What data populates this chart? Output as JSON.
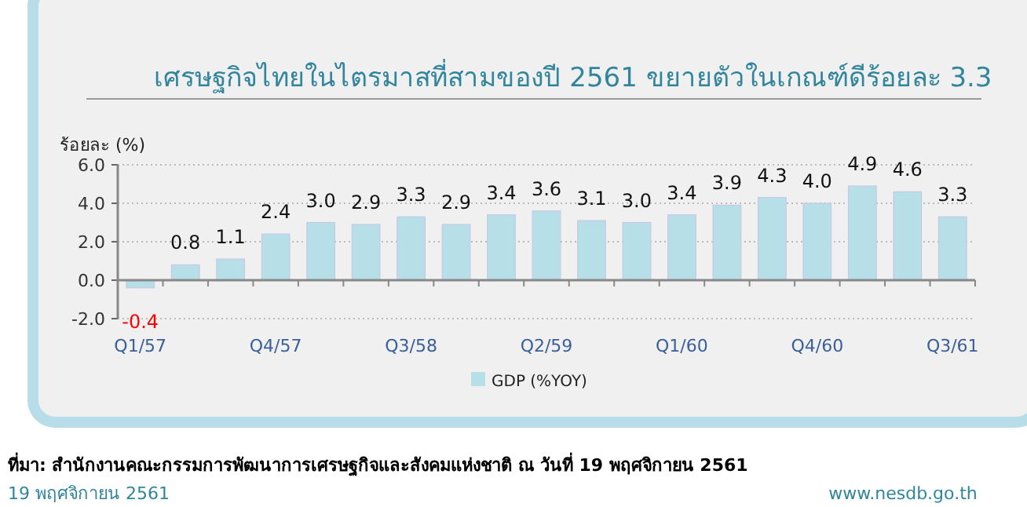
{
  "chart_data": {
    "type": "bar",
    "title": "เศรษฐกิจไทยในไตรมาสที่สามของปี 2561 ขยายตัวในเกณฑ์ดีร้อยละ 3.3",
    "ylabel": "ร้อยละ (%)",
    "categories": [
      "Q1/57",
      null,
      null,
      "Q4/57",
      null,
      null,
      "Q3/58",
      null,
      null,
      "Q2/59",
      null,
      null,
      "Q1/60",
      null,
      null,
      "Q4/60",
      null,
      null,
      "Q3/61"
    ],
    "series": [
      {
        "name": "GDP (%YOY)",
        "color": "#b7dfe8",
        "values": [
          -0.4,
          0.8,
          1.1,
          2.4,
          3.0,
          2.9,
          3.3,
          2.9,
          3.4,
          3.6,
          3.1,
          3.0,
          3.4,
          3.9,
          4.3,
          4.0,
          4.9,
          4.6,
          3.3
        ],
        "value_labels": [
          "-0.4",
          "0.8",
          "1.1",
          "2.4",
          "3.0",
          "2.9",
          "3.3",
          "2.9",
          "3.4",
          "3.6",
          "3.1",
          "3.0",
          "3.4",
          "3.9",
          "4.3",
          "4.0",
          "4.9",
          "4.6",
          "3.3"
        ]
      }
    ],
    "ylim": [
      -2,
      6
    ],
    "yticks": [
      {
        "value": -2,
        "label": "-2.0"
      },
      {
        "value": 0,
        "label": "0.0"
      },
      {
        "value": 2,
        "label": "2.0"
      },
      {
        "value": 4,
        "label": "4.0"
      },
      {
        "value": 6,
        "label": "6.0"
      }
    ],
    "grid": "y",
    "legend": "bottom",
    "annotations": [
      "ที่มา: สำนักงานคณะกรรมการพัฒนาการเศรษฐกิจและสังคมแห่งชาติ ณ วันที่ 19 พฤศจิกายน 2561",
      "19 พฤศจิกายน 2561",
      "www.nesdb.go.th"
    ]
  }
}
